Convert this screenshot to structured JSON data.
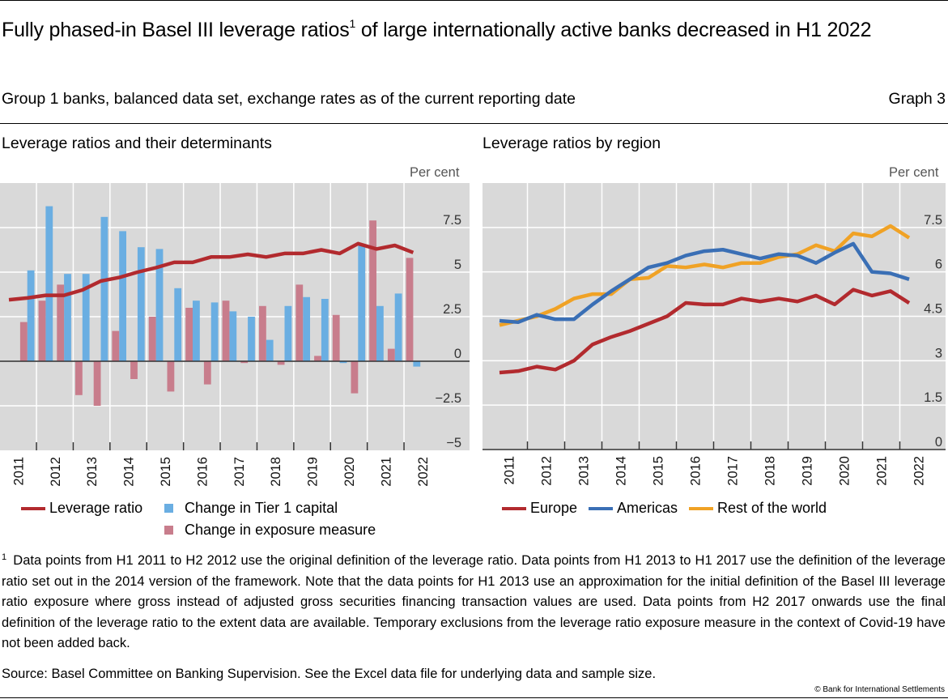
{
  "header": {
    "title_part1": "Fully phased-in Basel III leverage ratios",
    "title_sup": "1",
    "title_part2": " of large internationally active banks decreased in H1 2022",
    "subtitle": "Group 1 banks, balanced data set, exchange rates as of the current reporting date",
    "graph_number": "Graph 3"
  },
  "footnote": {
    "marker": "1",
    "text": "Data points from H1 2011 to H2 2012 use the original definition of the leverage ratio. Data points from H1 2013 to H1 2017 use the definition of the leverage ratio set out in the 2014 version of the framework. Note that the data points for H1 2013 use an approximation for the initial definition of the Basel III leverage ratio exposure where gross instead of adjusted gross securities financing transaction values are used. Data points from H2 2017 onwards use the final definition of the leverage ratio to the extent data are available. Temporary exclusions from the leverage ratio exposure measure in the context of Covid-19 have not been added back."
  },
  "source": "Source: Basel Committee on Banking Supervision. See the Excel data file for underlying data and sample size.",
  "copyright": "© Bank for International Settlements",
  "colors": {
    "plot_background": "#d9d9d9",
    "gridline": "#ffffff",
    "leverage_ratio": "#b22a2e",
    "tier1": "#6aaee2",
    "exposure": "#c87d8c",
    "europe": "#b22a2e",
    "americas": "#3a6fb5",
    "rest_of_world": "#f0a225"
  },
  "chart_data": [
    {
      "type": "bar",
      "title": "Leverage ratios and their determinants",
      "unit": "Per cent",
      "xlabel": "",
      "ylabel": "Per cent",
      "ylim": [
        -5,
        10
      ],
      "yticks": [
        7.5,
        5,
        2.5,
        0,
        -2.5,
        -5
      ],
      "ytick_labels": [
        "7.5",
        "5",
        "2.5",
        "0",
        "−2.5",
        "−5"
      ],
      "year_labels": [
        "2011",
        "2012",
        "2013",
        "2014",
        "2015",
        "2016",
        "2017",
        "2018",
        "2019",
        "2020",
        "2021",
        "2022"
      ],
      "x": [
        "H1 2011",
        "H2 2011",
        "H1 2012",
        "H2 2012",
        "H1 2013",
        "H2 2013",
        "H1 2014",
        "H2 2014",
        "H1 2015",
        "H2 2015",
        "H1 2016",
        "H2 2016",
        "H1 2017",
        "H2 2017",
        "H1 2018",
        "H2 2018",
        "H1 2019",
        "H2 2019",
        "H1 2020",
        "H2 2020",
        "H1 2021",
        "H2 2021",
        "H1 2022"
      ],
      "grid": true,
      "legend_position": "bottom",
      "series": [
        {
          "name": "Leverage ratio",
          "kind": "line",
          "color_key": "leverage_ratio",
          "values": [
            3.45,
            3.55,
            3.7,
            3.7,
            4.0,
            4.5,
            4.7,
            5.0,
            5.25,
            5.55,
            5.55,
            5.85,
            5.85,
            6.0,
            5.85,
            6.05,
            6.05,
            6.25,
            6.05,
            6.6,
            6.3,
            6.5,
            6.1
          ]
        },
        {
          "name": "Change in Tier 1 capital",
          "kind": "bar",
          "color_key": "tier1",
          "values": [
            null,
            5.1,
            8.7,
            4.9,
            4.9,
            8.1,
            7.3,
            6.4,
            6.3,
            4.1,
            3.4,
            3.3,
            2.8,
            2.5,
            1.2,
            3.1,
            3.6,
            3.5,
            -0.1,
            6.5,
            3.1,
            3.8,
            -0.3
          ]
        },
        {
          "name": "Change in exposure measure",
          "kind": "bar",
          "color_key": "exposure",
          "values": [
            null,
            2.2,
            3.4,
            4.3,
            -1.9,
            -2.5,
            1.7,
            -1.0,
            2.5,
            -1.7,
            3.0,
            -1.3,
            3.4,
            -0.1,
            3.1,
            -0.2,
            4.3,
            0.3,
            2.6,
            -1.8,
            7.9,
            0.7,
            5.8
          ]
        }
      ]
    },
    {
      "type": "line",
      "title": "Leverage ratios by region",
      "unit": "Per cent",
      "xlabel": "",
      "ylabel": "Per cent",
      "ylim": [
        0,
        9
      ],
      "yticks": [
        7.5,
        6,
        4.5,
        3,
        1.5,
        0
      ],
      "ytick_labels": [
        "7.5",
        "6",
        "4.5",
        "3",
        "1.5",
        "0"
      ],
      "year_labels": [
        "2011",
        "2012",
        "2013",
        "2014",
        "2015",
        "2016",
        "2017",
        "2018",
        "2019",
        "2020",
        "2021",
        "2022"
      ],
      "x": [
        "H1 2011",
        "H2 2011",
        "H1 2012",
        "H2 2012",
        "H1 2013",
        "H2 2013",
        "H1 2014",
        "H2 2014",
        "H1 2015",
        "H2 2015",
        "H1 2016",
        "H2 2016",
        "H1 2017",
        "H2 2017",
        "H1 2018",
        "H2 2018",
        "H1 2019",
        "H2 2019",
        "H1 2020",
        "H2 2020",
        "H1 2021",
        "H2 2021",
        "H1 2022"
      ],
      "grid": true,
      "legend_position": "bottom",
      "series": [
        {
          "name": "Europe",
          "color_key": "europe",
          "values": [
            2.6,
            2.65,
            2.8,
            2.7,
            3.0,
            3.55,
            3.8,
            4.0,
            4.25,
            4.5,
            4.95,
            4.9,
            4.9,
            5.1,
            5.0,
            5.1,
            5.0,
            5.2,
            4.9,
            5.4,
            5.2,
            5.35,
            4.95
          ]
        },
        {
          "name": "Americas",
          "color_key": "americas",
          "values": [
            4.35,
            4.3,
            4.55,
            4.4,
            4.4,
            4.9,
            5.35,
            5.75,
            6.15,
            6.3,
            6.55,
            6.7,
            6.75,
            6.6,
            6.45,
            6.6,
            6.55,
            6.3,
            6.65,
            6.95,
            6.0,
            5.95,
            5.75
          ]
        },
        {
          "name": "Rest of the world",
          "color_key": "rest_of_world",
          "values": [
            4.2,
            4.35,
            4.5,
            4.75,
            5.1,
            5.25,
            5.25,
            5.75,
            5.8,
            6.2,
            6.15,
            6.25,
            6.15,
            6.3,
            6.3,
            6.5,
            6.6,
            6.9,
            6.7,
            7.3,
            7.2,
            7.55,
            7.15
          ]
        }
      ]
    }
  ]
}
